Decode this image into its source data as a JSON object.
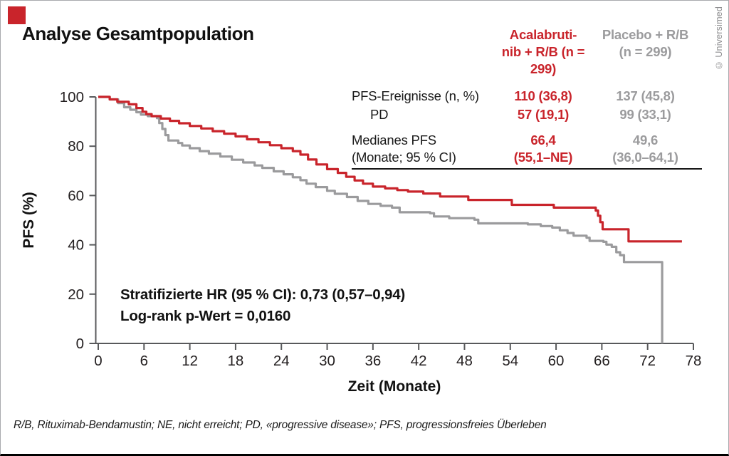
{
  "page": {
    "title": "Analyse Gesamtpopulation",
    "copyright": "© Universimed",
    "footnote": "R/B, Rituximab-Bendamustin; NE, nicht erreicht; PD, «progressive disease»; PFS, progressionsfreies Überleben",
    "accent_red": "#c9242b",
    "accent_gray": "#9b9b9d"
  },
  "stats_table": {
    "col1": {
      "line1": "Acalabruti-",
      "line2": "nib + R/B (n = 299)"
    },
    "col2": {
      "line1": "Placebo + R/B",
      "line2": "(n = 299)"
    },
    "row1": {
      "label": "PFS-Ereignisse (n, %)",
      "v1": "110 (36,8)",
      "v2": "137 (45,8)"
    },
    "row2": {
      "label": "PD",
      "v1": "57 (19,1)",
      "v2": "99 (33,1)"
    },
    "row3": {
      "label1": "Medianes PFS",
      "label2": "(Monate; 95 % CI)",
      "v1a": "66,4",
      "v1b": "(55,1–NE)",
      "v2a": "49,6",
      "v2b": "(36,0–64,1)"
    }
  },
  "annotation": {
    "line1": "Stratifizierte HR (95 % CI): 0,73 (0,57–0,94)",
    "line2": "Log-rank p-Wert = 0,0160"
  },
  "chart_data": {
    "type": "line",
    "subtype": "kaplan-meier-step",
    "title": "Analyse Gesamtpopulation",
    "xlabel": "Zeit (Monate)",
    "ylabel": "PFS (%)",
    "xlim": [
      0,
      78
    ],
    "ylim": [
      0,
      100
    ],
    "x_ticks": [
      0,
      6,
      12,
      18,
      24,
      30,
      36,
      42,
      48,
      54,
      60,
      66,
      72,
      78
    ],
    "y_ticks": [
      0,
      20,
      40,
      60,
      80,
      100
    ],
    "grid": "off",
    "legend": "table-top-right",
    "axis_color": "#58595b",
    "tick_label_color": "#231f20",
    "series": [
      {
        "name": "Placebo + R/B",
        "n": 299,
        "color": "#9b9b9d",
        "median_pfs_months": "49,6",
        "median_pfs_ci": "(36,0–64,1)",
        "points": [
          [
            0,
            100
          ],
          [
            1.5,
            99
          ],
          [
            2.6,
            97.5
          ],
          [
            3.4,
            95.8
          ],
          [
            4.2,
            94.8
          ],
          [
            5,
            93.8
          ],
          [
            5.6,
            92.8
          ],
          [
            6.5,
            92.2
          ],
          [
            7.7,
            91.4
          ],
          [
            8,
            89.4
          ],
          [
            8.4,
            87
          ],
          [
            8.8,
            84.5
          ],
          [
            9.2,
            82.3
          ],
          [
            10.5,
            81.3
          ],
          [
            11,
            80.3
          ],
          [
            12,
            79.2
          ],
          [
            13.3,
            78
          ],
          [
            14.5,
            77
          ],
          [
            16,
            75.8
          ],
          [
            17.5,
            74.5
          ],
          [
            19,
            73.4
          ],
          [
            20.5,
            72.2
          ],
          [
            21.5,
            71.2
          ],
          [
            23,
            69.8
          ],
          [
            24.3,
            68.6
          ],
          [
            25.5,
            67.4
          ],
          [
            26.5,
            66.2
          ],
          [
            27.3,
            64.8
          ],
          [
            28.5,
            63.4
          ],
          [
            30,
            61.9
          ],
          [
            31,
            60.7
          ],
          [
            32.6,
            59.4
          ],
          [
            34,
            57.8
          ],
          [
            35.4,
            56.6
          ],
          [
            37,
            55.8
          ],
          [
            38.5,
            55.1
          ],
          [
            39.5,
            53.2
          ],
          [
            43.5,
            52.8
          ],
          [
            44,
            51.5
          ],
          [
            46,
            50.8
          ],
          [
            49.3,
            50.2
          ],
          [
            49.8,
            48.7
          ],
          [
            56.3,
            48.3
          ],
          [
            58,
            47.6
          ],
          [
            59.5,
            47
          ],
          [
            60.5,
            45.9
          ],
          [
            61.5,
            44.8
          ],
          [
            62.3,
            43.7
          ],
          [
            64,
            42.9
          ],
          [
            64.4,
            41.6
          ],
          [
            66.2,
            41.2
          ],
          [
            66.6,
            40.1
          ],
          [
            67.3,
            39.2
          ],
          [
            67.9,
            37
          ],
          [
            68.4,
            35.8
          ],
          [
            68.9,
            33
          ],
          [
            73.9,
            33
          ],
          [
            73.9,
            0
          ]
        ]
      },
      {
        "name": "Acalabrutinib + R/B",
        "n": 299,
        "color": "#c9242b",
        "median_pfs_months": "66,4",
        "median_pfs_ci": "(55,1–NE)",
        "points": [
          [
            0,
            100
          ],
          [
            1.5,
            99
          ],
          [
            2.5,
            98
          ],
          [
            4,
            97
          ],
          [
            5,
            95.5
          ],
          [
            5.8,
            94
          ],
          [
            6.3,
            93
          ],
          [
            7,
            92.2
          ],
          [
            8.2,
            91.2
          ],
          [
            9.4,
            90.3
          ],
          [
            10.6,
            89.3
          ],
          [
            12,
            88.2
          ],
          [
            13.5,
            87.2
          ],
          [
            15,
            86.1
          ],
          [
            16.5,
            85.1
          ],
          [
            18,
            84
          ],
          [
            19.5,
            82.8
          ],
          [
            21,
            81.6
          ],
          [
            22.5,
            80.4
          ],
          [
            24,
            79.2
          ],
          [
            25.5,
            78
          ],
          [
            26.5,
            76.6
          ],
          [
            27.5,
            74.6
          ],
          [
            28.6,
            72.6
          ],
          [
            30,
            70.7
          ],
          [
            31.4,
            69.2
          ],
          [
            32.5,
            67.6
          ],
          [
            33.6,
            66.1
          ],
          [
            34.7,
            64.8
          ],
          [
            36,
            63.6
          ],
          [
            37.6,
            62.9
          ],
          [
            39.2,
            62.2
          ],
          [
            40.6,
            61.6
          ],
          [
            42.6,
            60.8
          ],
          [
            44.8,
            59.6
          ],
          [
            48.5,
            58.2
          ],
          [
            54.2,
            56.2
          ],
          [
            59.7,
            55.1
          ],
          [
            65.2,
            53.9
          ],
          [
            65.5,
            51.8
          ],
          [
            65.8,
            49.2
          ],
          [
            66.1,
            46.3
          ],
          [
            69.5,
            41.4
          ],
          [
            76.5,
            41.4
          ]
        ]
      }
    ],
    "annotations": [
      "Stratifizierte HR (95 % CI): 0,73 (0,57–0,94)",
      "Log-rank p-Wert = 0,0160"
    ],
    "events_table": {
      "pfs_events": {
        "acalabrutinib": "110 (36,8)",
        "placebo": "137 (45,8)"
      },
      "pd": {
        "acalabrutinib": "57 (19,1)",
        "placebo": "99 (33,1)"
      }
    }
  }
}
